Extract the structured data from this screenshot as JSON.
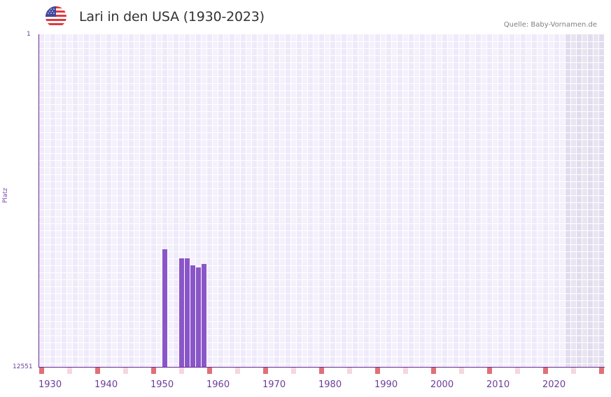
{
  "header": {
    "title": "Lari in den USA (1930-2023)",
    "source": "Quelle: Baby-Vornamen.de",
    "flag_icon": "us-flag-icon"
  },
  "colors": {
    "bar": "#8a55c8",
    "axis": "#6a2c91",
    "grid_a": "#efeafa",
    "grid_b": "#f4f1fc",
    "future_a": "#e2ddee",
    "future_b": "#e8e4f1",
    "decade_marker": "#e07078",
    "half_decade_marker": "#f5d8df"
  },
  "chart_data": {
    "type": "bar",
    "title": "Lari in den USA (1930-2023)",
    "xlabel": "",
    "ylabel": "Platz",
    "y_inverted": true,
    "ylim": [
      1,
      12551
    ],
    "xlim": [
      1930,
      2030
    ],
    "x_ticks": [
      "1930",
      "1940",
      "1950",
      "1960",
      "1970",
      "1980",
      "1990",
      "2000",
      "2010",
      "2020"
    ],
    "y_ticks": [
      "1",
      "12551"
    ],
    "grid": true,
    "series": [
      {
        "name": "Lari",
        "x": [
          1952,
          1955,
          1956,
          1957,
          1958,
          1959
        ],
        "values": [
          8110,
          8455,
          8455,
          8720,
          8800,
          8665
        ]
      }
    ],
    "shaded_region": [
      2024,
      2030
    ]
  },
  "axis": {
    "y_top": "1",
    "y_bottom": "12551",
    "y_title": "Platz",
    "x_ticks": [
      "1930",
      "1940",
      "1950",
      "1960",
      "1970",
      "1980",
      "1990",
      "2000",
      "2010",
      "2020"
    ]
  }
}
